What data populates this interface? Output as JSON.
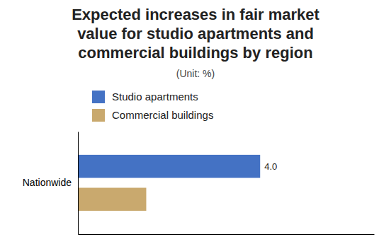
{
  "chart_data": {
    "type": "bar",
    "orientation": "horizontal",
    "title": "Expected increases in fair market\nvalue for studio apartments and\ncommercial buildings by region",
    "subtitle": "(Unit: %)",
    "categories": [
      "Nationwide"
    ],
    "series": [
      {
        "name": "Studio apartments",
        "color": "#4472C4",
        "values": [
          4.0
        ],
        "data_labels": true,
        "value_labels": [
          "4.0"
        ]
      },
      {
        "name": "Commercial buildings",
        "color": "#C9A96E",
        "values": [
          1.5
        ]
      }
    ],
    "xlim": [
      0,
      6.5
    ],
    "tick_labels": "y",
    "grid": false,
    "legend": "top"
  }
}
